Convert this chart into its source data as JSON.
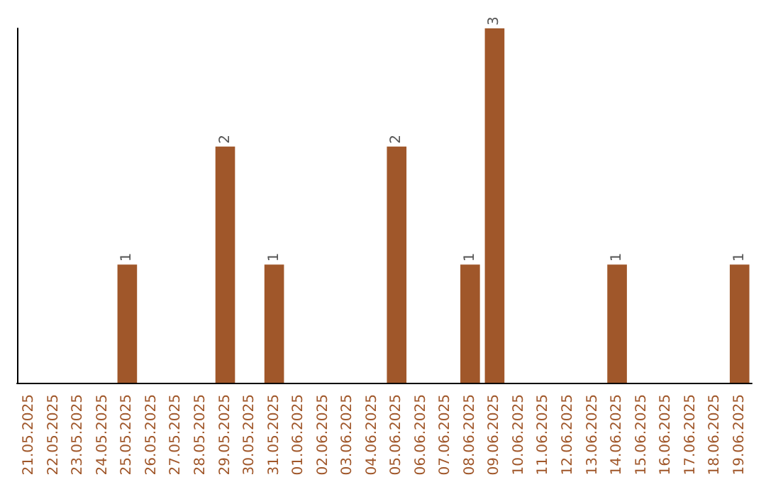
{
  "chart_data": {
    "type": "bar",
    "categories": [
      "21.05.2025",
      "22.05.2025",
      "23.05.2025",
      "24.05.2025",
      "25.05.2025",
      "26.05.2025",
      "27.05.2025",
      "28.05.2025",
      "29.05.2025",
      "30.05.2025",
      "31.05.2025",
      "01.06.2025",
      "02.06.2025",
      "03.06.2025",
      "04.06.2025",
      "05.06.2025",
      "06.06.2025",
      "07.06.2025",
      "08.06.2025",
      "09.06.2025",
      "10.06.2025",
      "11.06.2025",
      "12.06.2025",
      "13.06.2025",
      "14.06.2025",
      "15.06.2025",
      "16.06.2025",
      "17.06.2025",
      "18.06.2025",
      "19.06.2025"
    ],
    "values": [
      0,
      0,
      0,
      0,
      1,
      0,
      0,
      0,
      2,
      0,
      1,
      0,
      0,
      0,
      0,
      2,
      0,
      0,
      1,
      3,
      0,
      0,
      0,
      0,
      1,
      0,
      0,
      0,
      0,
      1
    ],
    "value_labels": [
      null,
      null,
      null,
      null,
      "1",
      null,
      null,
      null,
      "2",
      null,
      "1",
      null,
      null,
      null,
      null,
      "2",
      null,
      null,
      "1",
      "3",
      null,
      null,
      null,
      null,
      "1",
      null,
      null,
      null,
      null,
      "1"
    ],
    "color": "#a0572a",
    "tick_labels": "x"
  }
}
